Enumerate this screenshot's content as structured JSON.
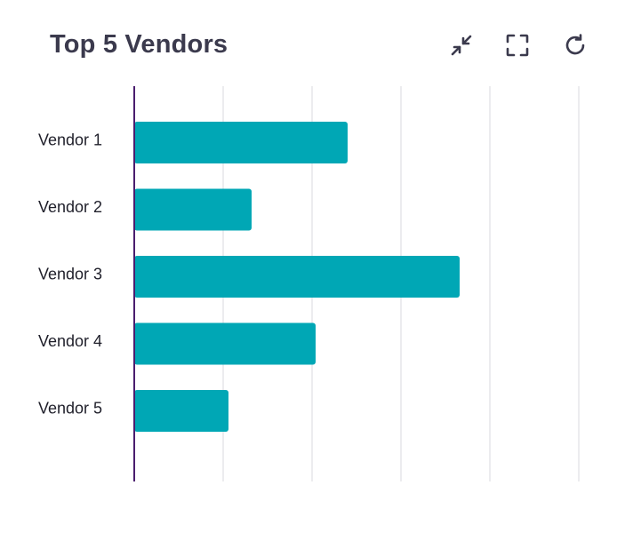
{
  "header": {
    "title": "Top 5 Vendors"
  },
  "toolbar": {
    "buttons": [
      {
        "name": "collapse-button",
        "icon": "collapse-arrows-icon"
      },
      {
        "name": "fullscreen-button",
        "icon": "fullscreen-corners-icon"
      },
      {
        "name": "refresh-button",
        "icon": "refresh-icon"
      }
    ]
  },
  "colors": {
    "bar": "#00a7b5",
    "axis": "#4a1d6e",
    "grid": "#e6e6ea",
    "icon": "#3b3a4d"
  },
  "chart_data": {
    "type": "bar",
    "orientation": "horizontal",
    "categories": [
      "Vendor 1",
      "Vendor 2",
      "Vendor 3",
      "Vendor 4",
      "Vendor 5"
    ],
    "values": [
      240,
      132,
      366,
      204,
      106
    ],
    "xlim": [
      0,
      500
    ],
    "grid": true,
    "title": "Top 5 Vendors"
  }
}
